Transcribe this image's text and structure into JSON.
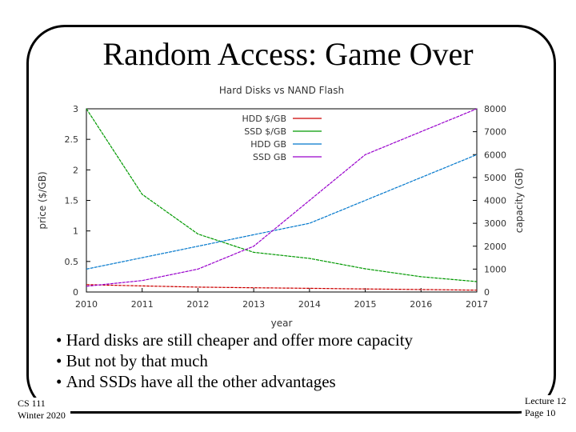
{
  "slide": {
    "title": "Random Access: Game Over",
    "bullets": [
      "Hard disks are still cheaper and offer more capacity",
      "But not by that much",
      "And SSDs have all the other advantages"
    ],
    "footer_left": [
      "CS 111",
      "Winter 2020"
    ],
    "footer_right": [
      "Lecture 12",
      "Page 10"
    ]
  },
  "chart_data": {
    "type": "line",
    "title": "Hard Disks vs NAND Flash",
    "xlabel": "year",
    "ylabel": "price ($/GB)",
    "y2label": "capacity (GB)",
    "x": [
      2010,
      2011,
      2012,
      2013,
      2014,
      2015,
      2016,
      2017
    ],
    "xlim": [
      2010,
      2017
    ],
    "ylim": [
      0,
      3
    ],
    "y2lim": [
      0,
      8000
    ],
    "yticks": [
      0,
      0.5,
      1,
      1.5,
      2,
      2.5,
      3
    ],
    "y2ticks": [
      0,
      1000,
      2000,
      3000,
      4000,
      5000,
      6000,
      7000,
      8000
    ],
    "grid": false,
    "legend": "top-center",
    "series": [
      {
        "name": "HDD $/GB",
        "axis": "left",
        "color": "#cc0000",
        "values": [
          0.12,
          0.1,
          0.08,
          0.07,
          0.06,
          0.05,
          0.04,
          0.03
        ]
      },
      {
        "name": "SSD $/GB",
        "axis": "left",
        "color": "#009900",
        "values": [
          3.0,
          1.6,
          0.95,
          0.65,
          0.55,
          0.38,
          0.25,
          0.17
        ]
      },
      {
        "name": "HDD GB",
        "axis": "right",
        "color": "#0077cc",
        "values": [
          1000,
          1500,
          2000,
          2500,
          3000,
          4000,
          5000,
          6000
        ]
      },
      {
        "name": "SSD GB",
        "axis": "right",
        "color": "#9900cc",
        "values": [
          250,
          500,
          1000,
          2000,
          4000,
          6000,
          7000,
          8000
        ]
      }
    ]
  }
}
